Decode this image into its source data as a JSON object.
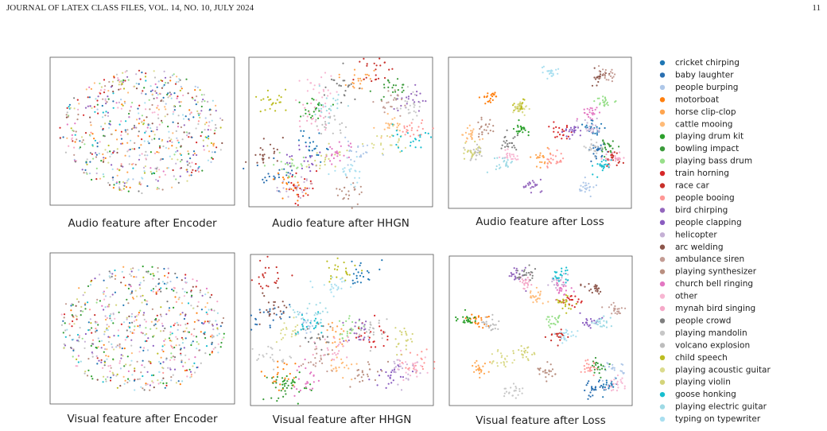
{
  "header": {
    "journal": "JOURNAL OF LATEX CLASS FILES, VOL. 14, NO. 10, JULY 2024",
    "page": "11"
  },
  "figure": {
    "panels": [
      {
        "caption": "Audio feature after Encoder"
      },
      {
        "caption": "Audio feature after HHGN"
      },
      {
        "caption": "Audio feature after Loss"
      },
      {
        "caption": "Visual feature after Encoder"
      },
      {
        "caption": "Visual feature after HHGN"
      },
      {
        "caption": "Visual feature after Loss"
      }
    ],
    "legend": {
      "items": [
        {
          "label": "cricket chirping",
          "color": "#1f77b4"
        },
        {
          "label": "baby laughter",
          "color": "#2a6fb0"
        },
        {
          "label": "people burping",
          "color": "#aec7e8"
        },
        {
          "label": "motorboat",
          "color": "#ff7f0e"
        },
        {
          "label": "horse clip-clop",
          "color": "#ffa54f"
        },
        {
          "label": "cattle mooing",
          "color": "#ffbb78"
        },
        {
          "label": "playing drum kit",
          "color": "#2ca02c"
        },
        {
          "label": "bowling impact",
          "color": "#3a9a3a"
        },
        {
          "label": "playing bass drum",
          "color": "#98df8a"
        },
        {
          "label": "train horning",
          "color": "#d62728"
        },
        {
          "label": "race car",
          "color": "#c8302a"
        },
        {
          "label": "people booing",
          "color": "#ff9896"
        },
        {
          "label": "bird chirping",
          "color": "#9467bd"
        },
        {
          "label": "people clapping",
          "color": "#8a5cc0"
        },
        {
          "label": "helicopter",
          "color": "#c5b0d5"
        },
        {
          "label": "arc welding",
          "color": "#8c564b"
        },
        {
          "label": "ambulance siren",
          "color": "#c49c94"
        },
        {
          "label": "playing synthesizer",
          "color": "#b98f80"
        },
        {
          "label": "church bell ringing",
          "color": "#e377c2"
        },
        {
          "label": "other",
          "color": "#f7b6d2"
        },
        {
          "label": "mynah bird singing",
          "color": "#f5a8c8"
        },
        {
          "label": "people crowd",
          "color": "#7f7f7f"
        },
        {
          "label": "playing mandolin",
          "color": "#c7c7c7"
        },
        {
          "label": "volcano explosion",
          "color": "#bdbdbd"
        },
        {
          "label": "child speech",
          "color": "#bcbd22"
        },
        {
          "label": "playing acoustic guitar",
          "color": "#dbdb8d"
        },
        {
          "label": "playing violin",
          "color": "#d4d47a"
        },
        {
          "label": "goose honking",
          "color": "#17becf"
        },
        {
          "label": "playing electric guitar",
          "color": "#9edae5"
        },
        {
          "label": "typing on typewriter",
          "color": "#a9dff0"
        }
      ]
    }
  }
}
